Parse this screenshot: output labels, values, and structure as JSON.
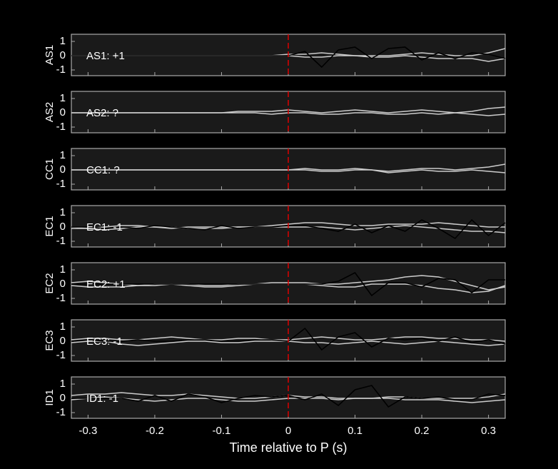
{
  "chart_data": [
    {
      "type": "line",
      "ylabel": "AS1",
      "annotation": "AS1: +1",
      "annotation_color": "#cc0000",
      "ylim": [
        -1.4,
        1.5
      ],
      "yticks": [
        -1,
        0,
        1
      ],
      "xlim": [
        -0.325,
        0.325
      ],
      "vline": 0,
      "vline_color": "#dd0000",
      "x": [
        -0.325,
        -0.3,
        -0.275,
        -0.25,
        -0.225,
        -0.2,
        -0.175,
        -0.15,
        -0.125,
        -0.1,
        -0.075,
        -0.05,
        -0.025,
        0,
        0.025,
        0.05,
        0.075,
        0.1,
        0.125,
        0.15,
        0.175,
        0.2,
        0.225,
        0.25,
        0.275,
        0.3,
        0.325
      ],
      "series": [
        {
          "color": "#cccccc",
          "values": [
            0,
            0,
            0,
            0,
            0,
            0,
            0,
            0,
            0,
            0,
            0,
            0,
            0,
            0.1,
            0.1,
            0.2,
            0.1,
            0,
            0,
            0,
            0.1,
            0.2,
            0.1,
            0,
            0,
            0.2,
            0.5
          ]
        },
        {
          "color": "#cccccc",
          "values": [
            0,
            0,
            0,
            0,
            0,
            0,
            0,
            0,
            0,
            0,
            0,
            0,
            0,
            0,
            -0.1,
            -0.1,
            0,
            0,
            -0.1,
            -0.1,
            0,
            -0.1,
            -0.2,
            -0.2,
            -0.2,
            -0.4,
            -0.2
          ]
        },
        {
          "color": "#000000",
          "values": [
            0,
            0,
            0,
            0,
            0,
            0,
            0,
            0,
            0,
            0,
            0,
            0,
            0,
            0,
            0.3,
            -0.8,
            0.4,
            0.6,
            -0.2,
            0.5,
            0.6,
            -0.3,
            0.2,
            -0.2,
            0.2,
            0.1,
            -0.2
          ]
        }
      ]
    },
    {
      "type": "line",
      "ylabel": "AS2",
      "annotation": "AS2: ?",
      "annotation_color": "#8a8a8a",
      "ylim": [
        -1.4,
        1.5
      ],
      "yticks": [
        -1,
        0,
        1
      ],
      "xlim": [
        -0.325,
        0.325
      ],
      "vline": 0,
      "vline_color": "#dd0000",
      "x": [
        -0.325,
        -0.3,
        -0.275,
        -0.25,
        -0.225,
        -0.2,
        -0.175,
        -0.15,
        -0.125,
        -0.1,
        -0.075,
        -0.05,
        -0.025,
        0,
        0.025,
        0.05,
        0.075,
        0.1,
        0.125,
        0.15,
        0.175,
        0.2,
        0.225,
        0.25,
        0.275,
        0.3,
        0.325
      ],
      "series": [
        {
          "color": "#cccccc",
          "values": [
            0,
            0,
            0,
            0,
            0,
            0,
            0,
            0,
            0,
            0,
            0.1,
            0.1,
            0.1,
            0.2,
            0.1,
            0,
            0.1,
            0.2,
            0.1,
            0,
            0.1,
            0.2,
            0.1,
            0,
            0.1,
            0.3,
            0.4
          ]
        },
        {
          "color": "#cccccc",
          "values": [
            0,
            0,
            0,
            0,
            0,
            0,
            0,
            0,
            0,
            0,
            0,
            0,
            -0.1,
            0,
            0,
            -0.1,
            -0.1,
            0,
            0,
            -0.1,
            -0.1,
            0,
            -0.1,
            0,
            -0.1,
            -0.2,
            -0.1
          ]
        }
      ]
    },
    {
      "type": "line",
      "ylabel": "CC1",
      "annotation": "CC1: ?",
      "annotation_color": "#8a8a8a",
      "ylim": [
        -1.4,
        1.5
      ],
      "yticks": [
        -1,
        0,
        1
      ],
      "xlim": [
        -0.325,
        0.325
      ],
      "vline": 0,
      "vline_color": "#dd0000",
      "x": [
        -0.325,
        -0.3,
        -0.275,
        -0.25,
        -0.225,
        -0.2,
        -0.175,
        -0.15,
        -0.125,
        -0.1,
        -0.075,
        -0.05,
        -0.025,
        0,
        0.025,
        0.05,
        0.075,
        0.1,
        0.125,
        0.15,
        0.175,
        0.2,
        0.225,
        0.25,
        0.275,
        0.3,
        0.325
      ],
      "series": [
        {
          "color": "#cccccc",
          "values": [
            0,
            0,
            0,
            0,
            0,
            0,
            0,
            0,
            0,
            0,
            0,
            0,
            0,
            0,
            0.1,
            0,
            0,
            0.1,
            0,
            -0.1,
            0,
            0.1,
            0.1,
            0,
            0.1,
            0.2,
            0.4
          ]
        },
        {
          "color": "#cccccc",
          "values": [
            0,
            0,
            0,
            0,
            0,
            0,
            0,
            0,
            0,
            0,
            0,
            0,
            0,
            0,
            0,
            -0.1,
            -0.1,
            0,
            0,
            -0.2,
            -0.1,
            0,
            -0.1,
            -0.1,
            0,
            -0.1,
            -0.2
          ]
        }
      ]
    },
    {
      "type": "line",
      "ylabel": "EC1",
      "annotation": "EC1: -1",
      "annotation_color": "#0000aa",
      "ylim": [
        -1.4,
        1.5
      ],
      "yticks": [
        -1,
        0,
        1
      ],
      "xlim": [
        -0.325,
        0.325
      ],
      "vline": 0,
      "vline_color": "#dd0000",
      "x": [
        -0.325,
        -0.3,
        -0.275,
        -0.25,
        -0.225,
        -0.2,
        -0.175,
        -0.15,
        -0.125,
        -0.1,
        -0.075,
        -0.05,
        -0.025,
        0,
        0.025,
        0.05,
        0.075,
        0.1,
        0.125,
        0.15,
        0.175,
        0.2,
        0.225,
        0.25,
        0.275,
        0.3,
        0.325
      ],
      "series": [
        {
          "color": "#cccccc",
          "values": [
            -0.1,
            -0.1,
            0,
            0.1,
            0.1,
            0,
            -0.1,
            0,
            0,
            0,
            0,
            0,
            0.1,
            0.2,
            0.3,
            0.3,
            0.2,
            0.1,
            0.1,
            0.2,
            0.2,
            0.2,
            0.3,
            0.2,
            0.1,
            0,
            0
          ]
        },
        {
          "color": "#cccccc",
          "values": [
            0,
            -0.1,
            -0.2,
            -0.1,
            0,
            0,
            0,
            -0.1,
            -0.1,
            -0.1,
            0,
            0,
            0,
            0,
            0,
            0,
            -0.1,
            -0.2,
            -0.1,
            0,
            0.1,
            0,
            -0.1,
            -0.2,
            -0.3,
            -0.3,
            -0.4
          ]
        },
        {
          "color": "#000000",
          "values": [
            0,
            0,
            -0.1,
            0,
            -0.1,
            0.1,
            0,
            -0.1,
            -0.2,
            0.1,
            -0.1,
            0,
            0,
            0.1,
            0.1,
            -0.1,
            -0.3,
            0.2,
            -0.4,
            0.1,
            -0.3,
            0.5,
            -0.1,
            -0.8,
            0.5,
            -0.6,
            0.3
          ]
        }
      ]
    },
    {
      "type": "line",
      "ylabel": "EC2",
      "annotation": "EC2: +1",
      "annotation_color": "#cc0000",
      "ylim": [
        -1.4,
        1.5
      ],
      "yticks": [
        -1,
        0,
        1
      ],
      "xlim": [
        -0.325,
        0.325
      ],
      "vline": 0,
      "vline_color": "#dd0000",
      "x": [
        -0.325,
        -0.3,
        -0.275,
        -0.25,
        -0.225,
        -0.2,
        -0.175,
        -0.15,
        -0.125,
        -0.1,
        -0.075,
        -0.05,
        -0.025,
        0,
        0.025,
        0.05,
        0.075,
        0.1,
        0.125,
        0.15,
        0.175,
        0.2,
        0.225,
        0.25,
        0.275,
        0.3,
        0.325
      ],
      "series": [
        {
          "color": "#cccccc",
          "values": [
            0.1,
            0.2,
            0.1,
            0,
            -0.1,
            -0.1,
            0,
            0,
            -0.1,
            -0.1,
            0,
            0,
            0.1,
            0.1,
            0.1,
            0,
            0,
            0.1,
            0.2,
            0.3,
            0.5,
            0.6,
            0.5,
            0.2,
            -0.1,
            -0.4,
            -0.2
          ]
        },
        {
          "color": "#cccccc",
          "values": [
            -0.1,
            -0.2,
            -0.2,
            -0.2,
            -0.1,
            0,
            0,
            -0.1,
            -0.2,
            -0.2,
            -0.1,
            0,
            0,
            0,
            0,
            -0.1,
            -0.2,
            -0.2,
            0,
            0,
            0,
            -0.1,
            -0.3,
            -0.4,
            -0.6,
            -0.5,
            -0.1
          ]
        },
        {
          "color": "#000000",
          "values": [
            0,
            0,
            0,
            0,
            0,
            0,
            0,
            0,
            0,
            0,
            0,
            0,
            0,
            0,
            0,
            0,
            0.2,
            0.8,
            -0.8,
            0.1,
            0.1,
            -0.2,
            0.4,
            0.3,
            -0.6,
            0.3,
            0.3
          ]
        }
      ]
    },
    {
      "type": "line",
      "ylabel": "EC3",
      "annotation": "EC3: -1",
      "annotation_color": "#0000aa",
      "ylim": [
        -1.4,
        1.5
      ],
      "yticks": [
        -1,
        0,
        1
      ],
      "xlim": [
        -0.325,
        0.325
      ],
      "vline": 0,
      "vline_color": "#dd0000",
      "x": [
        -0.325,
        -0.3,
        -0.275,
        -0.25,
        -0.225,
        -0.2,
        -0.175,
        -0.15,
        -0.125,
        -0.1,
        -0.075,
        -0.05,
        -0.025,
        0,
        0.025,
        0.05,
        0.075,
        0.1,
        0.125,
        0.15,
        0.175,
        0.2,
        0.225,
        0.25,
        0.275,
        0.3,
        0.325
      ],
      "series": [
        {
          "color": "#cccccc",
          "values": [
            0.1,
            0.2,
            0.2,
            0.1,
            0.1,
            0.2,
            0.3,
            0.2,
            0.1,
            0.1,
            0.2,
            0.2,
            0.1,
            0.1,
            0.2,
            0.3,
            0.2,
            0.1,
            0.1,
            0.2,
            0.3,
            0.3,
            0.2,
            0.2,
            0.1,
            0.1,
            0
          ]
        },
        {
          "color": "#cccccc",
          "values": [
            -0.1,
            0,
            0,
            -0.2,
            -0.3,
            -0.2,
            -0.1,
            0,
            0,
            -0.1,
            -0.1,
            0,
            0,
            0,
            -0.1,
            -0.1,
            -0.2,
            -0.1,
            0,
            -0.1,
            -0.2,
            -0.1,
            0,
            -0.1,
            -0.2,
            -0.3,
            -0.2
          ]
        },
        {
          "color": "#000000",
          "values": [
            0,
            0.1,
            0,
            0,
            0.1,
            0,
            0,
            0.1,
            0.1,
            0,
            0,
            0.1,
            0.1,
            0,
            0.9,
            -0.6,
            0.3,
            0.6,
            -0.4,
            0.2,
            0.1,
            0.2,
            0,
            0.3,
            -0.1,
            0.1,
            -0.2
          ]
        }
      ]
    },
    {
      "type": "line",
      "ylabel": "ID1",
      "annotation": "ID1: -1",
      "annotation_color": "#0000aa",
      "ylim": [
        -1.4,
        1.5
      ],
      "yticks": [
        -1,
        0,
        1
      ],
      "xlim": [
        -0.325,
        0.325
      ],
      "vline": 0,
      "vline_color": "#dd0000",
      "xticks": [
        -0.3,
        -0.2,
        -0.1,
        0,
        0.1,
        0.2,
        0.3
      ],
      "xlabel": "Time relative to P (s)",
      "x": [
        -0.325,
        -0.3,
        -0.275,
        -0.25,
        -0.225,
        -0.2,
        -0.175,
        -0.15,
        -0.125,
        -0.1,
        -0.075,
        -0.05,
        -0.025,
        0,
        0.025,
        0.05,
        0.075,
        0.1,
        0.125,
        0.15,
        0.175,
        0.2,
        0.225,
        0.25,
        0.275,
        0.3,
        0.325
      ],
      "series": [
        {
          "color": "#cccccc",
          "values": [
            0.2,
            0.3,
            0.3,
            0.4,
            0.3,
            0.2,
            0.2,
            0.3,
            0.2,
            0.1,
            0,
            0,
            0.1,
            0.2,
            0.1,
            0.1,
            0,
            0,
            0,
            0.1,
            0.1,
            0,
            0,
            0,
            0,
            0.1,
            0.3
          ]
        },
        {
          "color": "#cccccc",
          "values": [
            -0.1,
            0,
            0.1,
            0,
            -0.1,
            -0.2,
            -0.1,
            0,
            0,
            -0.1,
            -0.2,
            -0.2,
            -0.1,
            0,
            0,
            0,
            -0.1,
            0,
            0,
            0,
            -0.1,
            -0.1,
            -0.1,
            -0.2,
            -0.3,
            -0.2,
            -0.1
          ]
        },
        {
          "color": "#000000",
          "values": [
            0,
            0,
            0,
            0,
            -0.2,
            0.2,
            -0.2,
            0.3,
            0.1,
            -0.3,
            0,
            0.2,
            0.1,
            0.2,
            -0.1,
            0.3,
            -0.5,
            0.6,
            0.9,
            -0.6,
            0.1,
            0,
            0.1,
            -0.1,
            -0.1,
            0.3,
            0.2
          ]
        }
      ]
    }
  ]
}
